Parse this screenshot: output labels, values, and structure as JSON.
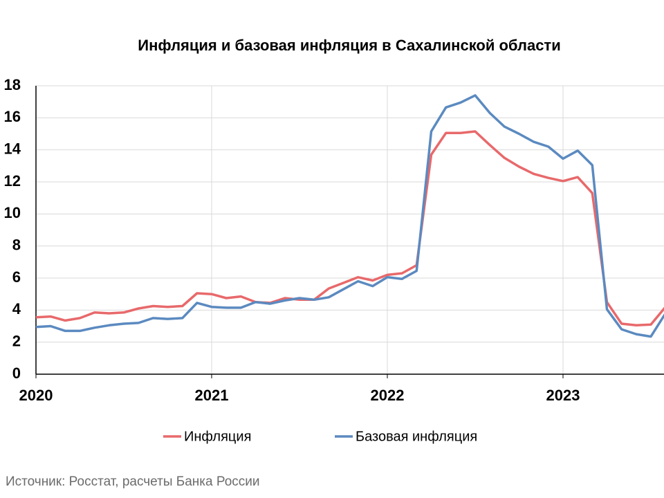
{
  "chart_data": {
    "type": "line",
    "title": "Инфляция и базовая инфляция в Сахалинской области",
    "source": "Источник: Росстат, расчеты Банка России",
    "categories": [
      "2020",
      null,
      null,
      null,
      null,
      null,
      null,
      null,
      null,
      null,
      null,
      null,
      "2021",
      null,
      null,
      null,
      null,
      null,
      null,
      null,
      null,
      null,
      null,
      null,
      "2022",
      null,
      null,
      null,
      null,
      null,
      null,
      null,
      null,
      null,
      null,
      null,
      "2023",
      null,
      null,
      null,
      null,
      null,
      null,
      null
    ],
    "series": [
      {
        "name": "Инфляция",
        "color": "#e8696b",
        "values": [
          3.55,
          3.6,
          3.35,
          3.5,
          3.85,
          3.8,
          3.85,
          4.1,
          4.25,
          4.2,
          4.25,
          5.05,
          5.0,
          4.75,
          4.85,
          4.5,
          4.45,
          4.75,
          4.65,
          4.65,
          5.35,
          5.7,
          6.05,
          5.85,
          6.2,
          6.3,
          6.8,
          13.7,
          15.05,
          15.05,
          15.15,
          14.3,
          13.5,
          12.95,
          12.5,
          12.25,
          12.05,
          12.3,
          11.3,
          4.5,
          3.15,
          3.05,
          3.1,
          4.2
        ]
      },
      {
        "name": "Базовая инфляция",
        "color": "#5b8ac0",
        "values": [
          2.95,
          3.0,
          2.7,
          2.7,
          2.9,
          3.05,
          3.15,
          3.2,
          3.5,
          3.45,
          3.5,
          4.45,
          4.2,
          4.15,
          4.15,
          4.5,
          4.4,
          4.6,
          4.75,
          4.65,
          4.8,
          5.3,
          5.8,
          5.5,
          6.05,
          5.95,
          6.45,
          15.15,
          16.65,
          16.95,
          17.4,
          16.3,
          15.45,
          15.0,
          14.5,
          14.2,
          13.45,
          13.95,
          13.05,
          4.05,
          2.8,
          2.5,
          2.35,
          3.8
        ]
      }
    ],
    "ylim": [
      0,
      18
    ],
    "yticks": [
      0,
      2,
      4,
      6,
      8,
      10,
      12,
      14,
      16,
      18
    ],
    "grid": true,
    "legend": "bottom"
  }
}
